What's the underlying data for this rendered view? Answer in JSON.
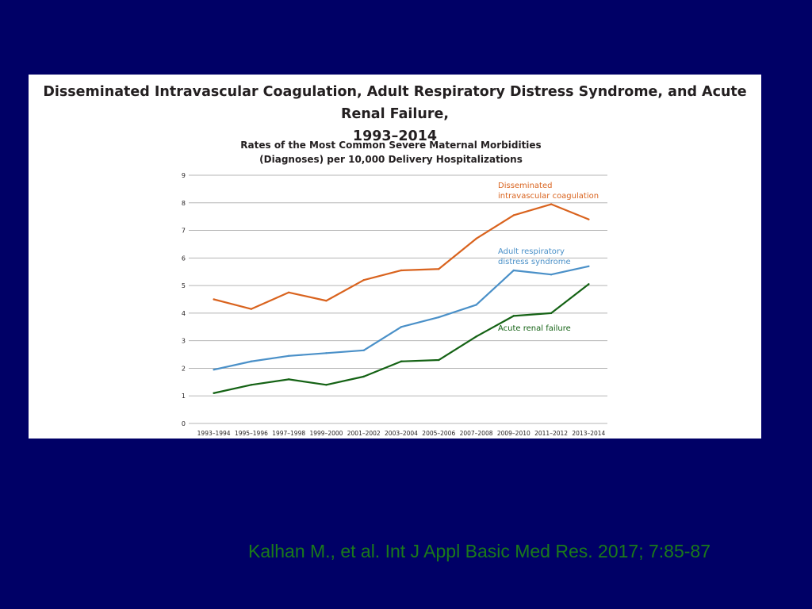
{
  "slide": {
    "title_line1": "Disseminated Intravascular Coagulation, Adult Respiratory Distress Syndrome, and Acute Renal Failure,",
    "title_line2": "1993–2014",
    "citation": "Kalhan M., et al. Int J Appl Basic Med Res. 2017; 7:85-87",
    "background_color": "#000066",
    "citation_color": "#1a7a1a"
  },
  "chart_data": {
    "type": "line",
    "title": "Rates of the Most Common Severe Maternal Morbidities",
    "subtitle": "(Diagnoses) per 10,000 Delivery Hospitalizations",
    "xlabel": "",
    "ylabel": "",
    "categories": [
      "1993–1994",
      "1995–1996",
      "1997–1998",
      "1999–2000",
      "2001–2002",
      "2003–2004",
      "2005–2006",
      "2007–2008",
      "2009–2010",
      "2011–2012",
      "2013–2014"
    ],
    "yticks": [
      0,
      1,
      2,
      3,
      4,
      5,
      6,
      7,
      8,
      9
    ],
    "ylim": [
      0,
      9
    ],
    "grid": true,
    "series": [
      {
        "name_lines": [
          "Disseminated",
          "intravascular coagulation"
        ],
        "color": "#d9631e",
        "values": [
          4.5,
          4.15,
          4.75,
          4.45,
          5.2,
          5.55,
          5.6,
          6.7,
          7.55,
          7.95,
          7.4
        ]
      },
      {
        "name_lines": [
          "Adult respiratory",
          "distress syndrome"
        ],
        "color": "#4a90c8",
        "values": [
          1.95,
          2.25,
          2.45,
          2.55,
          2.65,
          3.5,
          3.85,
          4.3,
          5.55,
          5.4,
          5.7
        ]
      },
      {
        "name_lines": [
          "Acute renal failure"
        ],
        "color": "#146214",
        "values": [
          1.1,
          1.4,
          1.6,
          1.4,
          1.7,
          2.25,
          2.3,
          3.15,
          3.9,
          4.0,
          5.05
        ]
      }
    ]
  }
}
